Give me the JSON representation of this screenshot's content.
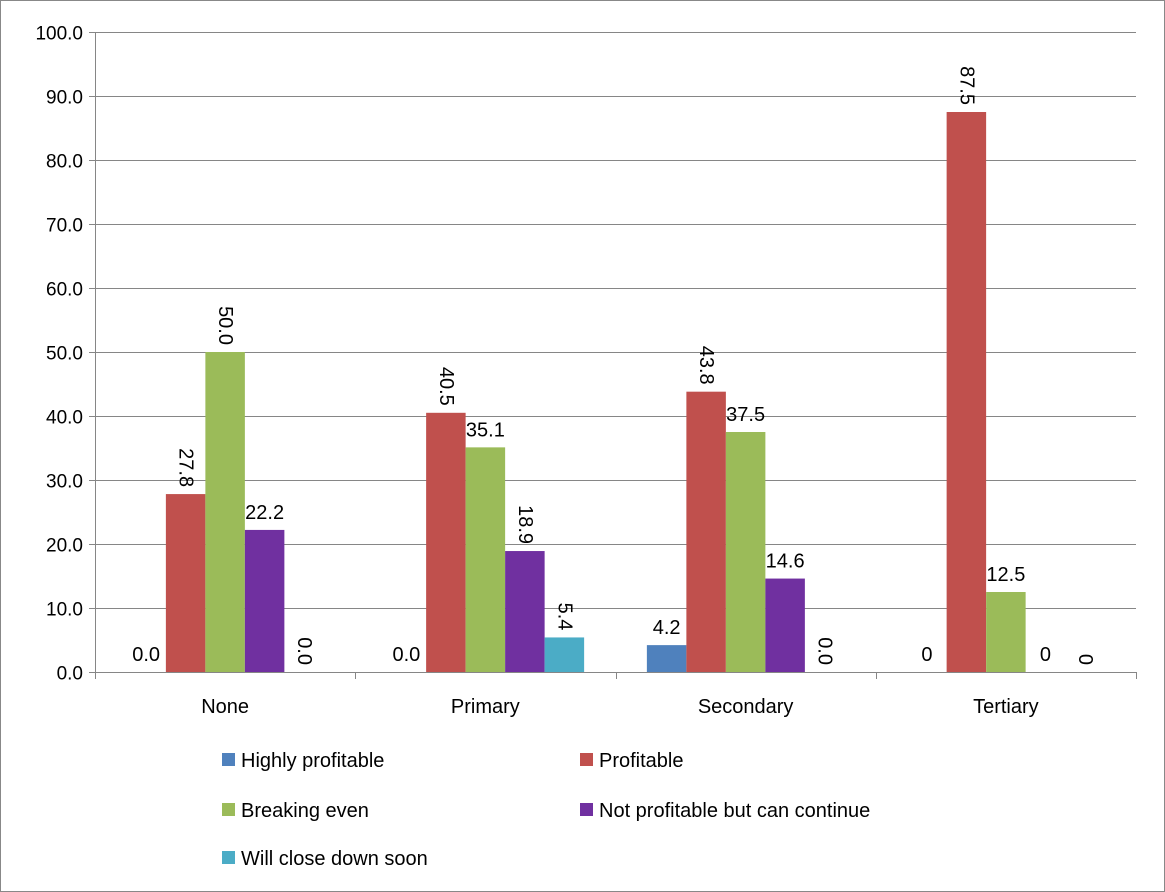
{
  "chart_data": {
    "type": "bar",
    "title": "",
    "xlabel": "",
    "ylabel": "",
    "ylim": [
      0,
      100
    ],
    "yticks": [
      "0.0",
      "10.0",
      "20.0",
      "30.0",
      "40.0",
      "50.0",
      "60.0",
      "70.0",
      "80.0",
      "90.0",
      "100.0"
    ],
    "grid": true,
    "legend_position": "bottom",
    "categories": [
      "None",
      "Primary",
      "Secondary",
      "Tertiary"
    ],
    "series": [
      {
        "name": "Highly profitable",
        "color": "#4F81BD",
        "values": [
          0,
          0,
          4.2,
          0
        ],
        "labels": [
          "0.0",
          "0.0",
          "4.2",
          "0"
        ],
        "label_rotated": [
          false,
          false,
          false,
          false
        ]
      },
      {
        "name": "Profitable",
        "color": "#C0504D",
        "values": [
          27.8,
          40.5,
          43.8,
          87.5
        ],
        "labels": [
          "27.8",
          "40.5",
          "43.8",
          "87.5"
        ],
        "label_rotated": [
          true,
          true,
          true,
          true
        ]
      },
      {
        "name": "Breaking even",
        "color": "#9BBB59",
        "values": [
          50.0,
          35.1,
          37.5,
          12.5
        ],
        "labels": [
          "50.0",
          "35.1",
          "37.5",
          "12.5"
        ],
        "label_rotated": [
          true,
          false,
          false,
          false
        ]
      },
      {
        "name": "Not profitable but can continue",
        "color": "#7030A0",
        "values": [
          22.2,
          18.9,
          14.6,
          0
        ],
        "labels": [
          "22.2",
          "18.9",
          "14.6",
          "0"
        ],
        "label_rotated": [
          false,
          true,
          false,
          false
        ]
      },
      {
        "name": "Will close down soon",
        "color": "#4BACC6",
        "values": [
          0,
          5.4,
          0,
          0
        ],
        "labels": [
          "0.0",
          "5.4",
          "0.0",
          "0"
        ],
        "label_rotated": [
          true,
          true,
          true,
          true
        ]
      }
    ]
  }
}
